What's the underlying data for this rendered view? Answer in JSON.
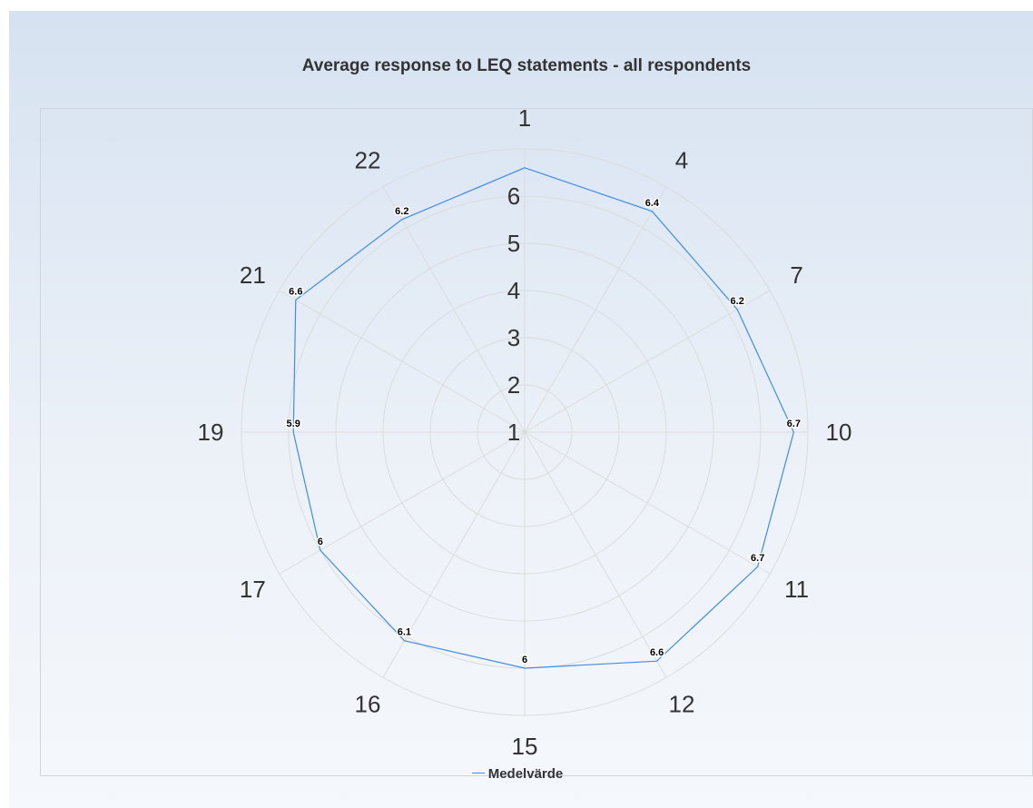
{
  "chart_data": {
    "type": "radar",
    "title": "Average response to LEQ statements - all respondents",
    "categories": [
      "1",
      "4",
      "7",
      "10",
      "11",
      "12",
      "15",
      "16",
      "17",
      "19",
      "21",
      "22"
    ],
    "series": [
      {
        "name": "Medelvärde",
        "values": [
          6.6,
          6.4,
          6.2,
          6.7,
          6.7,
          6.6,
          6,
          6.1,
          6,
          5.9,
          6.6,
          6.2
        ],
        "data_labels": [
          "",
          "6.4",
          "6.2",
          "6.7",
          "6.7",
          "6.6",
          "6",
          "6.1",
          "6",
          "5.9",
          "6.6",
          "6.2"
        ],
        "color": "#3f8de8"
      }
    ],
    "radial_ticks": [
      "1",
      "2",
      "3",
      "4",
      "5",
      "6"
    ],
    "rlim": [
      1,
      7
    ],
    "grid": true,
    "legend_position": "bottom"
  }
}
